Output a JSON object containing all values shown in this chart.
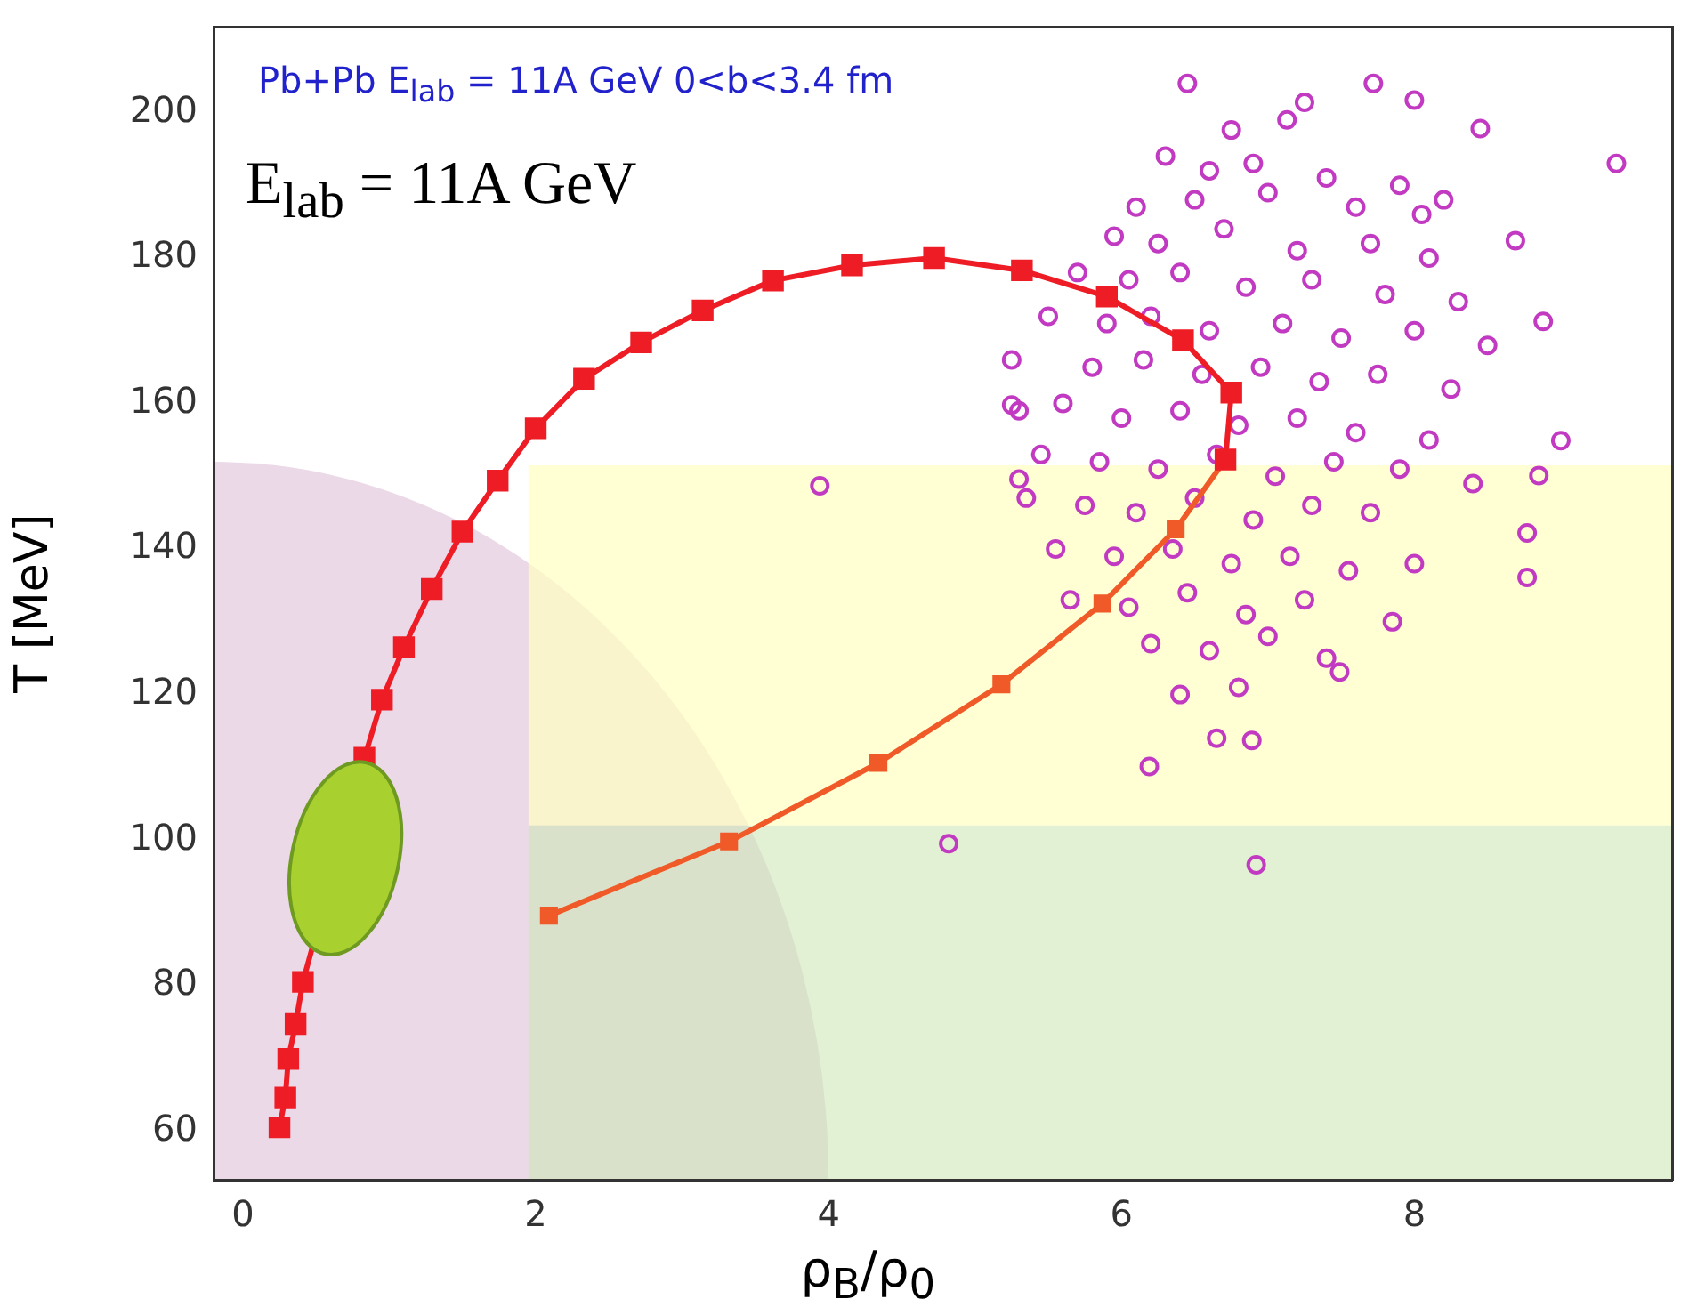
{
  "chart_data": {
    "type": "line",
    "title": "Pb+Pb E$_{lab}$ = 11A GeV 0<b<3.4 fm",
    "xlabel": "ρ$_{B}$/ρ$_{0}$",
    "ylabel": "T [MeV]",
    "annotations": [
      "E$_{lab}$ = 11A GeV"
    ],
    "xlim": [
      -0.2,
      9.76
    ],
    "ylim": [
      53.3,
      211.8
    ],
    "xticks": [
      0,
      2,
      4,
      6,
      8
    ],
    "yticks": [
      60,
      80,
      100,
      120,
      140,
      160,
      180,
      200
    ],
    "grid": false,
    "legend": false,
    "series": [
      {
        "color": "#ee1c25",
        "marker": "square",
        "x": [
          0.25,
          0.29,
          0.31,
          0.36,
          0.41,
          0.83,
          0.95,
          1.1,
          1.29,
          1.5,
          1.74,
          2.0,
          2.33,
          2.72,
          3.14,
          3.62,
          4.16,
          4.72,
          5.32,
          5.9,
          6.42,
          6.75,
          6.71
        ],
        "values": [
          60.5,
          64.6,
          69.9,
          74.7,
          80.5,
          111.3,
          119.3,
          126.5,
          134.5,
          142.4,
          149.4,
          156.6,
          163.4,
          168.4,
          172.8,
          176.9,
          179,
          180,
          178.3,
          174.7,
          168.7,
          161.5,
          152.3
        ]
      },
      {
        "color": "#f05a28",
        "marker": "square",
        "x": [
          6.71,
          6.37,
          5.87,
          5.18,
          4.34,
          3.32,
          2.09
        ],
        "values": [
          152.3,
          142.7,
          132.5,
          121.4,
          110.6,
          99.8,
          89.6
        ]
      },
      {
        "type": "scatter",
        "color": "#c13ac1",
        "marker": "circle",
        "x": [
          6.45,
          7.25,
          7.72,
          8.0,
          6.75,
          7.13,
          8.45,
          9.38,
          6.3,
          6.6,
          6.9,
          7.4,
          7.9,
          8.2,
          6.1,
          6.5,
          7.0,
          7.6,
          8.05,
          8.69,
          5.95,
          6.25,
          6.7,
          7.2,
          7.7,
          8.1,
          8.88,
          5.7,
          6.05,
          6.4,
          6.85,
          7.3,
          7.8,
          8.3,
          5.5,
          5.9,
          6.2,
          6.6,
          7.1,
          7.5,
          8.0,
          8.5,
          5.25,
          5.8,
          6.15,
          6.55,
          6.95,
          7.35,
          7.75,
          8.25,
          9.0,
          5.3,
          5.6,
          6.0,
          6.4,
          6.8,
          7.2,
          7.6,
          8.1,
          8.85,
          5.45,
          5.85,
          6.25,
          6.65,
          7.05,
          7.45,
          7.9,
          8.4,
          5.35,
          5.75,
          6.1,
          6.5,
          6.9,
          7.3,
          7.7,
          8.77,
          5.55,
          5.95,
          6.35,
          6.75,
          7.15,
          7.55,
          8.0,
          8.77,
          5.65,
          6.05,
          6.45,
          6.85,
          7.25,
          7.49,
          6.2,
          6.6,
          7.0,
          7.4,
          6.4,
          6.8,
          6.65,
          6.89,
          6.19,
          4.82,
          6.92,
          3.94,
          5.25,
          5.3,
          7.85
        ],
        "values": [
          204,
          201.4,
          204,
          201.7,
          197.6,
          199,
          197.8,
          193,
          194,
          192,
          193,
          191,
          190,
          188,
          187,
          188,
          189,
          187,
          186,
          182.4,
          183,
          182,
          184,
          181,
          182,
          180,
          171.3,
          178,
          177,
          178,
          176,
          177,
          175,
          174,
          172,
          171,
          172,
          170,
          171,
          169,
          170,
          168,
          166,
          165,
          166,
          164,
          165,
          163,
          164,
          162,
          154.9,
          159,
          160,
          158,
          159,
          157,
          158,
          156,
          155,
          150.1,
          153,
          152,
          151,
          153,
          150,
          152,
          151,
          149,
          147,
          146,
          145,
          147,
          144,
          146,
          145,
          142.2,
          140,
          139,
          140,
          138,
          139,
          137,
          138,
          136.1,
          133,
          132,
          134,
          131,
          133,
          123.1,
          127,
          126,
          128,
          125,
          120,
          121,
          114,
          113.7,
          110.1,
          99.5,
          96.6,
          148.7,
          159.8,
          149.6,
          130
        ]
      }
    ]
  }
}
